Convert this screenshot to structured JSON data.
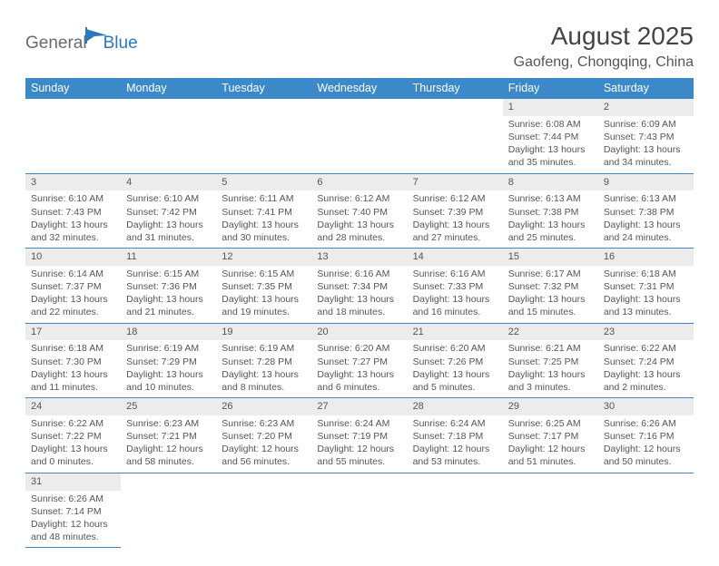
{
  "logo": {
    "part1": "General",
    "part2": "Blue"
  },
  "title": "August 2025",
  "location": "Gaofeng, Chongqing, China",
  "colors": {
    "header_bg": "#3b89c9",
    "header_text": "#ffffff",
    "daynum_bg": "#ececec",
    "cell_border": "#3b89c9",
    "body_text": "#555555",
    "logo_gray": "#6a6a6a",
    "logo_blue": "#2d77bd"
  },
  "weekdays": [
    "Sunday",
    "Monday",
    "Tuesday",
    "Wednesday",
    "Thursday",
    "Friday",
    "Saturday"
  ],
  "weeks": [
    [
      null,
      null,
      null,
      null,
      null,
      {
        "n": "1",
        "sr": "Sunrise: 6:08 AM",
        "ss": "Sunset: 7:44 PM",
        "d1": "Daylight: 13 hours",
        "d2": "and 35 minutes."
      },
      {
        "n": "2",
        "sr": "Sunrise: 6:09 AM",
        "ss": "Sunset: 7:43 PM",
        "d1": "Daylight: 13 hours",
        "d2": "and 34 minutes."
      }
    ],
    [
      {
        "n": "3",
        "sr": "Sunrise: 6:10 AM",
        "ss": "Sunset: 7:43 PM",
        "d1": "Daylight: 13 hours",
        "d2": "and 32 minutes."
      },
      {
        "n": "4",
        "sr": "Sunrise: 6:10 AM",
        "ss": "Sunset: 7:42 PM",
        "d1": "Daylight: 13 hours",
        "d2": "and 31 minutes."
      },
      {
        "n": "5",
        "sr": "Sunrise: 6:11 AM",
        "ss": "Sunset: 7:41 PM",
        "d1": "Daylight: 13 hours",
        "d2": "and 30 minutes."
      },
      {
        "n": "6",
        "sr": "Sunrise: 6:12 AM",
        "ss": "Sunset: 7:40 PM",
        "d1": "Daylight: 13 hours",
        "d2": "and 28 minutes."
      },
      {
        "n": "7",
        "sr": "Sunrise: 6:12 AM",
        "ss": "Sunset: 7:39 PM",
        "d1": "Daylight: 13 hours",
        "d2": "and 27 minutes."
      },
      {
        "n": "8",
        "sr": "Sunrise: 6:13 AM",
        "ss": "Sunset: 7:38 PM",
        "d1": "Daylight: 13 hours",
        "d2": "and 25 minutes."
      },
      {
        "n": "9",
        "sr": "Sunrise: 6:13 AM",
        "ss": "Sunset: 7:38 PM",
        "d1": "Daylight: 13 hours",
        "d2": "and 24 minutes."
      }
    ],
    [
      {
        "n": "10",
        "sr": "Sunrise: 6:14 AM",
        "ss": "Sunset: 7:37 PM",
        "d1": "Daylight: 13 hours",
        "d2": "and 22 minutes."
      },
      {
        "n": "11",
        "sr": "Sunrise: 6:15 AM",
        "ss": "Sunset: 7:36 PM",
        "d1": "Daylight: 13 hours",
        "d2": "and 21 minutes."
      },
      {
        "n": "12",
        "sr": "Sunrise: 6:15 AM",
        "ss": "Sunset: 7:35 PM",
        "d1": "Daylight: 13 hours",
        "d2": "and 19 minutes."
      },
      {
        "n": "13",
        "sr": "Sunrise: 6:16 AM",
        "ss": "Sunset: 7:34 PM",
        "d1": "Daylight: 13 hours",
        "d2": "and 18 minutes."
      },
      {
        "n": "14",
        "sr": "Sunrise: 6:16 AM",
        "ss": "Sunset: 7:33 PM",
        "d1": "Daylight: 13 hours",
        "d2": "and 16 minutes."
      },
      {
        "n": "15",
        "sr": "Sunrise: 6:17 AM",
        "ss": "Sunset: 7:32 PM",
        "d1": "Daylight: 13 hours",
        "d2": "and 15 minutes."
      },
      {
        "n": "16",
        "sr": "Sunrise: 6:18 AM",
        "ss": "Sunset: 7:31 PM",
        "d1": "Daylight: 13 hours",
        "d2": "and 13 minutes."
      }
    ],
    [
      {
        "n": "17",
        "sr": "Sunrise: 6:18 AM",
        "ss": "Sunset: 7:30 PM",
        "d1": "Daylight: 13 hours",
        "d2": "and 11 minutes."
      },
      {
        "n": "18",
        "sr": "Sunrise: 6:19 AM",
        "ss": "Sunset: 7:29 PM",
        "d1": "Daylight: 13 hours",
        "d2": "and 10 minutes."
      },
      {
        "n": "19",
        "sr": "Sunrise: 6:19 AM",
        "ss": "Sunset: 7:28 PM",
        "d1": "Daylight: 13 hours",
        "d2": "and 8 minutes."
      },
      {
        "n": "20",
        "sr": "Sunrise: 6:20 AM",
        "ss": "Sunset: 7:27 PM",
        "d1": "Daylight: 13 hours",
        "d2": "and 6 minutes."
      },
      {
        "n": "21",
        "sr": "Sunrise: 6:20 AM",
        "ss": "Sunset: 7:26 PM",
        "d1": "Daylight: 13 hours",
        "d2": "and 5 minutes."
      },
      {
        "n": "22",
        "sr": "Sunrise: 6:21 AM",
        "ss": "Sunset: 7:25 PM",
        "d1": "Daylight: 13 hours",
        "d2": "and 3 minutes."
      },
      {
        "n": "23",
        "sr": "Sunrise: 6:22 AM",
        "ss": "Sunset: 7:24 PM",
        "d1": "Daylight: 13 hours",
        "d2": "and 2 minutes."
      }
    ],
    [
      {
        "n": "24",
        "sr": "Sunrise: 6:22 AM",
        "ss": "Sunset: 7:22 PM",
        "d1": "Daylight: 13 hours",
        "d2": "and 0 minutes."
      },
      {
        "n": "25",
        "sr": "Sunrise: 6:23 AM",
        "ss": "Sunset: 7:21 PM",
        "d1": "Daylight: 12 hours",
        "d2": "and 58 minutes."
      },
      {
        "n": "26",
        "sr": "Sunrise: 6:23 AM",
        "ss": "Sunset: 7:20 PM",
        "d1": "Daylight: 12 hours",
        "d2": "and 56 minutes."
      },
      {
        "n": "27",
        "sr": "Sunrise: 6:24 AM",
        "ss": "Sunset: 7:19 PM",
        "d1": "Daylight: 12 hours",
        "d2": "and 55 minutes."
      },
      {
        "n": "28",
        "sr": "Sunrise: 6:24 AM",
        "ss": "Sunset: 7:18 PM",
        "d1": "Daylight: 12 hours",
        "d2": "and 53 minutes."
      },
      {
        "n": "29",
        "sr": "Sunrise: 6:25 AM",
        "ss": "Sunset: 7:17 PM",
        "d1": "Daylight: 12 hours",
        "d2": "and 51 minutes."
      },
      {
        "n": "30",
        "sr": "Sunrise: 6:26 AM",
        "ss": "Sunset: 7:16 PM",
        "d1": "Daylight: 12 hours",
        "d2": "and 50 minutes."
      }
    ],
    [
      {
        "n": "31",
        "sr": "Sunrise: 6:26 AM",
        "ss": "Sunset: 7:14 PM",
        "d1": "Daylight: 12 hours",
        "d2": "and 48 minutes."
      },
      null,
      null,
      null,
      null,
      null,
      null
    ]
  ]
}
